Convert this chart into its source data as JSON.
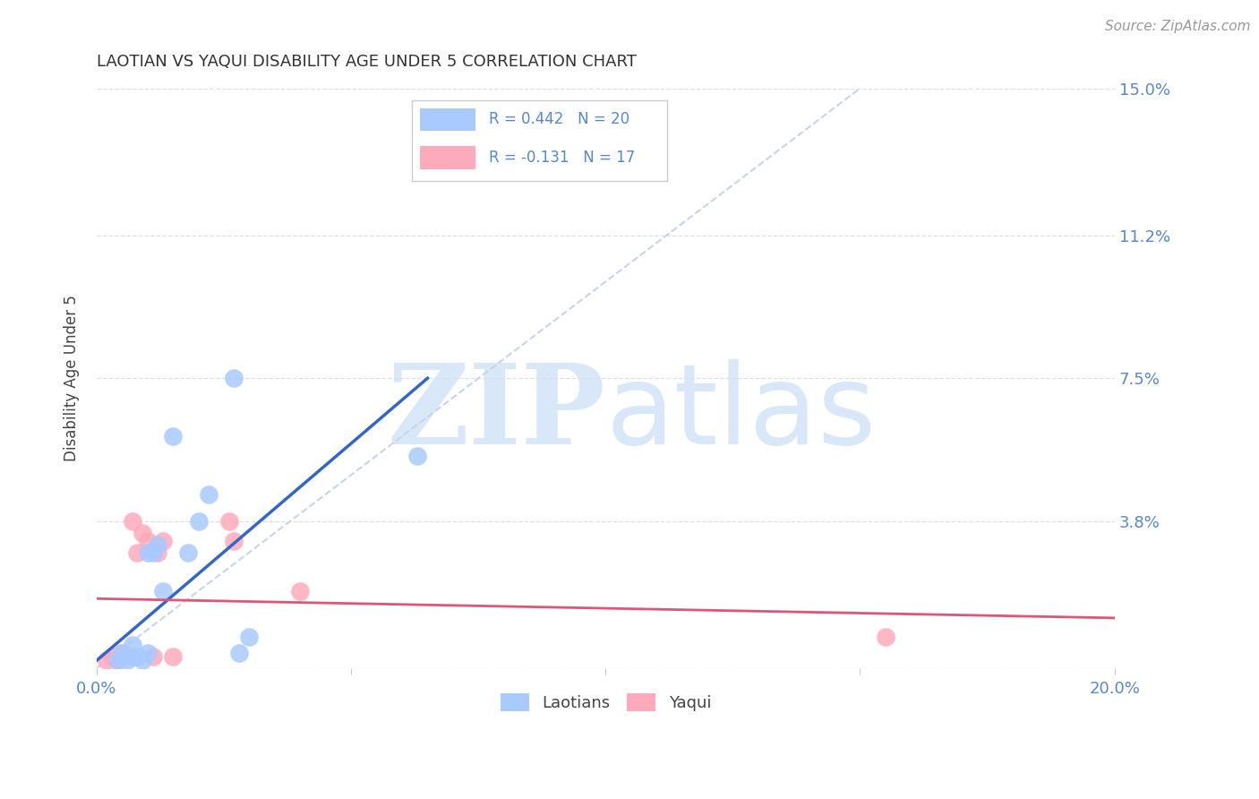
{
  "title": "LAOTIAN VS YAQUI DISABILITY AGE UNDER 5 CORRELATION CHART",
  "source_text": "Source: ZipAtlas.com",
  "ylabel": "Disability Age Under 5",
  "xlim": [
    0.0,
    0.2
  ],
  "ylim": [
    0.0,
    0.15
  ],
  "xticks": [
    0.0,
    0.05,
    0.1,
    0.15,
    0.2
  ],
  "xtick_labels": [
    "0.0%",
    "",
    "",
    "",
    "20.0%"
  ],
  "yticks": [
    0.0,
    0.038,
    0.075,
    0.112,
    0.15
  ],
  "ytick_labels_right": [
    "",
    "3.8%",
    "7.5%",
    "11.2%",
    "15.0%"
  ],
  "legend_labels": [
    "Laotians",
    "Yaqui"
  ],
  "r_laotian": "R = 0.442",
  "n_laotian": "N = 20",
  "r_yaqui": "R = -0.131",
  "n_yaqui": "N = 17",
  "laotian_color": "#A8CAFE",
  "yaqui_color": "#FFAABB",
  "laotian_line_color": "#3366CC",
  "yaqui_line_color": "#E05575",
  "diagonal_color": "#C8D4E8",
  "bg_color": "#FFFFFF",
  "watermark_color": "#D8E8F8",
  "grid_color": "#D8E0EC",
  "title_color": "#333333",
  "axis_label_color": "#5588CC",
  "source_color": "#999999",
  "laotian_x": [
    0.004,
    0.005,
    0.006,
    0.007,
    0.007,
    0.008,
    0.009,
    0.01,
    0.01,
    0.011,
    0.012,
    0.013,
    0.015,
    0.018,
    0.02,
    0.022,
    0.027,
    0.028,
    0.063,
    0.03
  ],
  "laotian_y": [
    0.002,
    0.004,
    0.002,
    0.003,
    0.006,
    0.003,
    0.002,
    0.004,
    0.03,
    0.03,
    0.032,
    0.02,
    0.06,
    0.03,
    0.038,
    0.045,
    0.075,
    0.004,
    0.055,
    0.008
  ],
  "yaqui_x": [
    0.002,
    0.003,
    0.004,
    0.005,
    0.006,
    0.007,
    0.008,
    0.009,
    0.01,
    0.011,
    0.012,
    0.013,
    0.015,
    0.026,
    0.027,
    0.04,
    0.155
  ],
  "yaqui_y": [
    0.002,
    0.003,
    0.002,
    0.004,
    0.003,
    0.038,
    0.03,
    0.035,
    0.033,
    0.003,
    0.03,
    0.033,
    0.003,
    0.038,
    0.033,
    0.02,
    0.008
  ]
}
